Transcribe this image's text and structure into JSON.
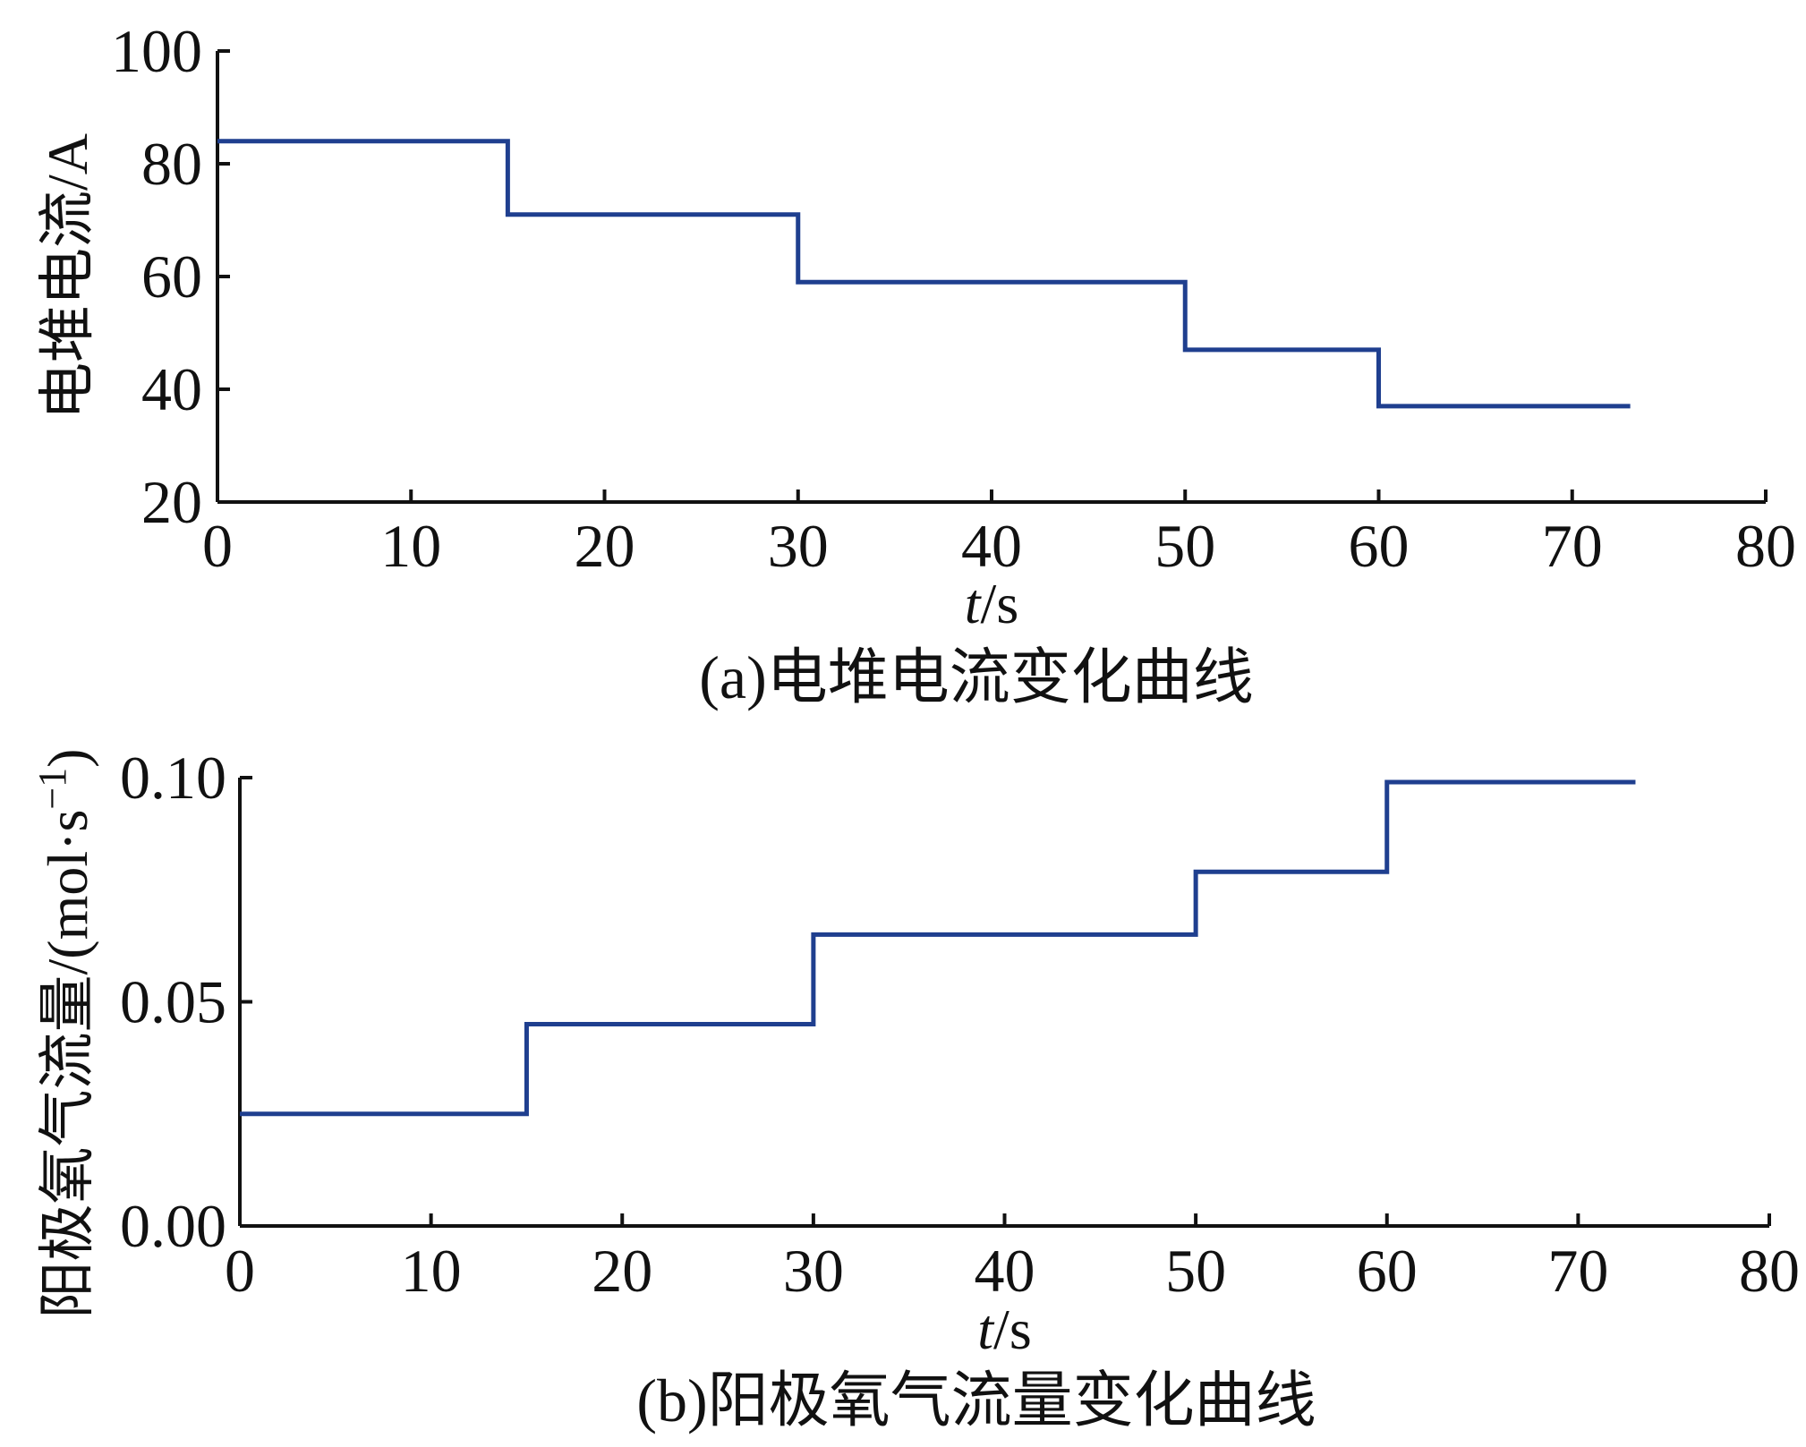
{
  "chart_data": [
    {
      "type": "line",
      "step": "post",
      "title": "",
      "caption": "(a)电堆电流变化曲线",
      "xlabel": "t/s",
      "xlabel_italic_part": "t",
      "xlabel_rest": "/s",
      "ylabel": "电堆电流/A",
      "xlim": [
        0,
        80
      ],
      "ylim": [
        20,
        100
      ],
      "xticks": [
        0,
        10,
        20,
        30,
        40,
        50,
        60,
        70,
        80
      ],
      "yticks": [
        20,
        40,
        60,
        80,
        100
      ],
      "xtick_labels": [
        "0",
        "10",
        "20",
        "30",
        "40",
        "50",
        "60",
        "70",
        "80"
      ],
      "ytick_labels": [
        "20",
        "40",
        "60",
        "80",
        "100"
      ],
      "grid": false,
      "series": [
        {
          "color": "#1f3f8f",
          "x": [
            0,
            15,
            30,
            50,
            60,
            73
          ],
          "y": [
            84,
            71,
            59,
            47,
            37,
            37
          ]
        }
      ]
    },
    {
      "type": "line",
      "step": "post",
      "title": "",
      "caption": "(b)阳极氧气流量变化曲线",
      "xlabel": "t/s",
      "xlabel_italic_part": "t",
      "xlabel_rest": "/s",
      "ylabel": "阳极氧气流量/(mol·s⁻¹)",
      "ylabel_main": "阳极氧气流量/(mol·s",
      "ylabel_sup": "−1",
      "ylabel_close": ")",
      "xlim": [
        0,
        80
      ],
      "ylim": [
        0,
        0.1
      ],
      "xticks": [
        0,
        10,
        20,
        30,
        40,
        50,
        60,
        70,
        80
      ],
      "yticks": [
        0,
        0.05,
        0.1
      ],
      "xtick_labels": [
        "0",
        "10",
        "20",
        "30",
        "40",
        "50",
        "60",
        "70",
        "80"
      ],
      "ytick_labels": [
        "0.00",
        "0.05",
        "0.10"
      ],
      "grid": false,
      "series": [
        {
          "color": "#1f3f8f",
          "x": [
            0,
            15,
            30,
            50,
            60,
            73
          ],
          "y": [
            0.025,
            0.045,
            0.065,
            0.079,
            0.099,
            0.099
          ]
        }
      ]
    }
  ]
}
